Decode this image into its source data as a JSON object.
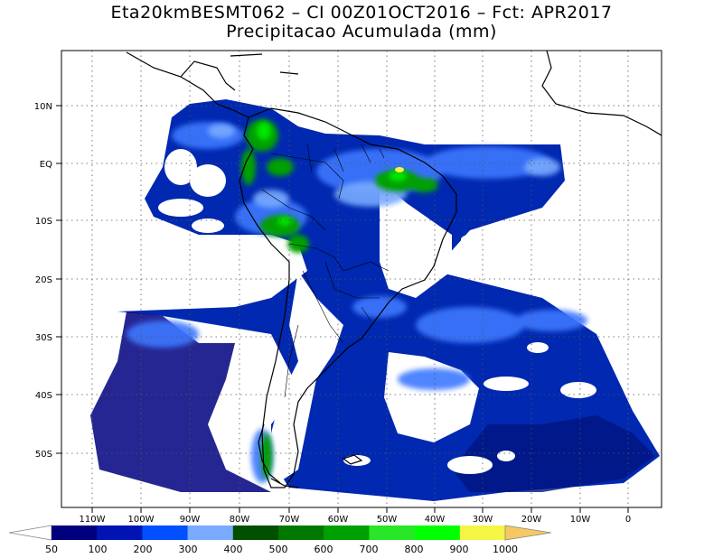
{
  "title": "Eta20kmBESMT062 – CI 00Z01OCT2016 – Fct: APR2017",
  "subtitle": "Precipitacao Acumulada (mm)",
  "axes": {
    "lat_labels": [
      {
        "lat": 10,
        "text": "10N"
      },
      {
        "lat": 0,
        "text": "EQ"
      },
      {
        "lat": -10,
        "text": "10S"
      },
      {
        "lat": -20,
        "text": "20S"
      },
      {
        "lat": -30,
        "text": "30S"
      },
      {
        "lat": -40,
        "text": "40S"
      },
      {
        "lat": -50,
        "text": "50S"
      }
    ],
    "lon_labels": [
      {
        "lon": -110,
        "text": "110W"
      },
      {
        "lon": -100,
        "text": "100W"
      },
      {
        "lon": -90,
        "text": "90W"
      },
      {
        "lon": -80,
        "text": "80W"
      },
      {
        "lon": -70,
        "text": "70W"
      },
      {
        "lon": -60,
        "text": "60W"
      },
      {
        "lon": -50,
        "text": "50W"
      },
      {
        "lon": -40,
        "text": "40W"
      },
      {
        "lon": -30,
        "text": "30W"
      },
      {
        "lon": -20,
        "text": "20W"
      },
      {
        "lon": -10,
        "text": "10W"
      },
      {
        "lon": 0,
        "text": "0"
      }
    ],
    "grid": true
  },
  "colorbar": {
    "labels": [
      "50",
      "100",
      "200",
      "300",
      "400",
      "500",
      "600",
      "700",
      "800",
      "900",
      "1000"
    ],
    "colors": [
      "#00007f",
      "#0014b4",
      "#0050ff",
      "#3c8cff",
      "#78aaff",
      "#005000",
      "#007800",
      "#00a000",
      "#00c800",
      "#28e628",
      "#00ff00",
      "#f5f546"
    ],
    "under_color": "#ffffff",
    "over_color": "#f5c864"
  },
  "colors": {
    "ocean_background": "#ffffff",
    "coast": "#000000",
    "grid": "#555555"
  }
}
